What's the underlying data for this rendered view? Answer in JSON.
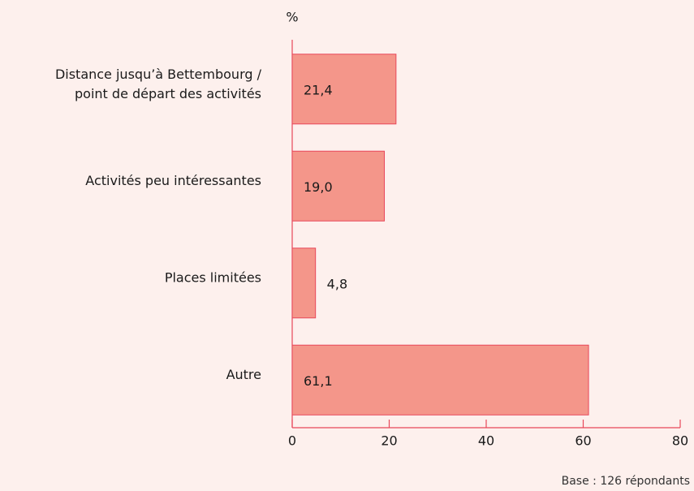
{
  "chart_data": {
    "type": "hbar",
    "y_axis_unit": "%",
    "categories": [
      "Distance jusqu’à Bettembourg /\npoint de départ des activités",
      "Activités peu intéressantes",
      "Places limitées",
      "Autre"
    ],
    "values": [
      21.4,
      19.0,
      4.8,
      61.1
    ],
    "value_labels": [
      "21,4",
      "19,0",
      "4,8",
      "61,1"
    ],
    "color": "#f4968a",
    "xlim": [
      0,
      80
    ],
    "xticks": [
      0,
      20,
      40,
      60,
      80
    ],
    "footnote": "Base : 126 répondants"
  }
}
